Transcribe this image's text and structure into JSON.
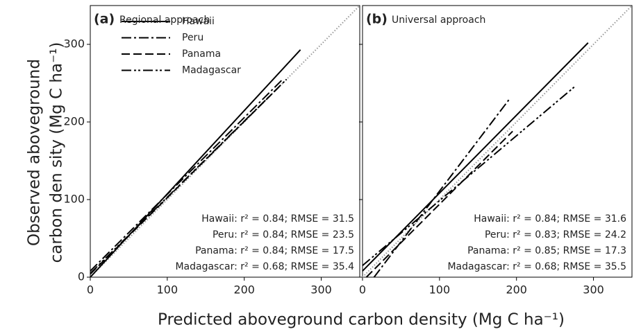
{
  "xlabel": "Predicted aboveground carbon density (Mg C ha⁻¹)",
  "ylabel": [
    "Observed aboveground",
    "carbon den sity (Mg C ha⁻¹)"
  ],
  "chart_data": [
    {
      "type": "line",
      "panel_label": "(a)",
      "title": "Regional approach",
      "xlim": [
        0,
        350
      ],
      "ylim": [
        0,
        350
      ],
      "xticks": [
        0,
        100,
        200,
        300
      ],
      "yticks": [
        0,
        100,
        200,
        300
      ],
      "show_ytick_labels": true,
      "legend": "upper left",
      "reference_line": {
        "x": [
          0,
          350
        ],
        "values": [
          0,
          350
        ],
        "color": "#999999"
      },
      "series": [
        {
          "name": "Hawaii",
          "color": "#000000",
          "style": "solid",
          "x": [
            0,
            273
          ],
          "values": [
            0,
            293
          ]
        },
        {
          "name": "Peru",
          "color": "#000000",
          "style": "dashdot",
          "x": [
            0,
            250
          ],
          "values": [
            8,
            255
          ]
        },
        {
          "name": "Panama",
          "color": "#000000",
          "style": "dashed",
          "x": [
            0,
            245
          ],
          "values": [
            4,
            245
          ]
        },
        {
          "name": "Madagascar",
          "color": "#000000",
          "style": "dashdotdot",
          "x": [
            0,
            255
          ],
          "values": [
            5,
            255
          ]
        }
      ],
      "annotations": [
        "Hawaii: r² = 0.84; RMSE = 31.5",
        "Peru: r² = 0.84; RMSE = 23.5",
        "Panama: r² = 0.84; RMSE = 17.5",
        "Madagascar: r² = 0.68; RMSE = 35.4"
      ]
    },
    {
      "type": "line",
      "panel_label": "(b)",
      "title": "Universal approach",
      "xlim": [
        0,
        350
      ],
      "ylim": [
        0,
        350
      ],
      "xticks": [
        0,
        100,
        200,
        300
      ],
      "yticks": [
        0,
        100,
        200,
        300
      ],
      "show_ytick_labels": false,
      "reference_line": {
        "x": [
          0,
          350
        ],
        "values": [
          0,
          350
        ],
        "color": "#999999"
      },
      "series": [
        {
          "color": "#000000",
          "style": "solid",
          "x": [
            0,
            293
          ],
          "values": [
            8,
            302
          ]
        },
        {
          "color": "#000000",
          "style": "dashdot",
          "x": [
            15,
            192
          ],
          "values": [
            0,
            231
          ]
        },
        {
          "color": "#000000",
          "style": "dashed",
          "x": [
            5,
            195
          ],
          "values": [
            0,
            188
          ]
        },
        {
          "color": "#000000",
          "style": "dashdotdot",
          "x": [
            0,
            275
          ],
          "values": [
            15,
            245
          ]
        }
      ],
      "annotations": [
        "Hawaii: r² = 0.84; RMSE = 31.6",
        "Peru: r² = 0.83; RMSE = 24.2",
        "Panama: r² = 0.85; RMSE = 17.3",
        "Madagascar: r² = 0.68; RMSE = 35.5"
      ]
    }
  ]
}
